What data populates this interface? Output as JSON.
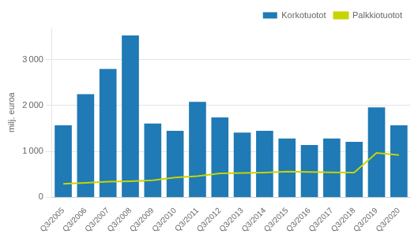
{
  "chart_data": {
    "type": "bar",
    "categories": [
      "Q3/2005",
      "Q3/2006",
      "Q3/2007",
      "Q3/2008",
      "Q3/2009",
      "Q3/2010",
      "Q3/2011",
      "Q3/2012",
      "Q3/2013",
      "Q3/2014",
      "Q3/2015",
      "Q3/2016",
      "Q3/2017",
      "Q3/2018",
      "Q3/2019",
      "Q3/2020"
    ],
    "series": [
      {
        "name": "Korkotuotot",
        "type": "bar",
        "color": "#1f7ab5",
        "values": [
          1570,
          2250,
          2800,
          3530,
          1610,
          1450,
          2080,
          1740,
          1410,
          1450,
          1280,
          1140,
          1280,
          1210,
          1960,
          1570
        ]
      },
      {
        "name": "Palkkiotuotot",
        "type": "line",
        "color": "#c8d400",
        "values": [
          295,
          315,
          340,
          350,
          370,
          430,
          460,
          520,
          530,
          540,
          560,
          550,
          545,
          540,
          970,
          920
        ]
      }
    ],
    "ylabel": "milj. euroa",
    "ylim": [
      0,
      3700
    ],
    "yticks": [
      0,
      {
        "value": 1000,
        "label": "1 000"
      },
      {
        "value": 2000,
        "label": "2 000"
      },
      {
        "value": 3000,
        "label": "3 000"
      }
    ],
    "grid": true,
    "legend": "upper right"
  }
}
